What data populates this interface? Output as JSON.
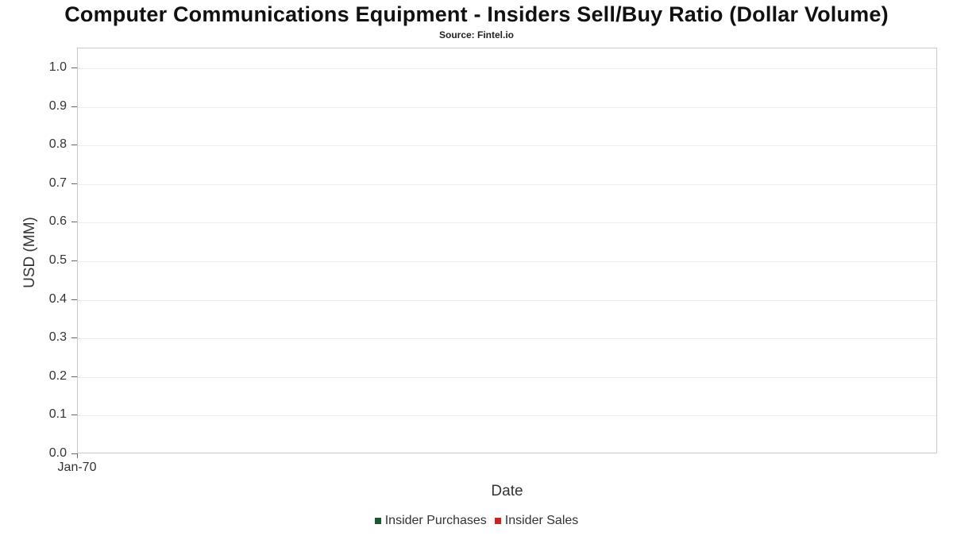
{
  "chart_data": {
    "type": "line",
    "title": "Computer Communications Equipment - Insiders Sell/Buy Ratio (Dollar Volume)",
    "subtitle": "Source: Fintel.io",
    "xlabel": "Date",
    "ylabel": "USD (MM)",
    "ylim": [
      0.0,
      1.0
    ],
    "ytick_labels": [
      "1.0",
      "0.9",
      "0.8",
      "0.7",
      "0.6",
      "0.5",
      "0.4",
      "0.3",
      "0.2",
      "0.1",
      "0.0"
    ],
    "xtick_labels": [
      "Jan-70"
    ],
    "grid": true,
    "legend_position": "bottom-center",
    "plot_empty": true,
    "series": [
      {
        "name": "Insider Purchases",
        "color": "#1a5632",
        "x": [],
        "values": []
      },
      {
        "name": "Insider Sales",
        "color": "#cc2222",
        "x": [],
        "values": []
      }
    ]
  }
}
